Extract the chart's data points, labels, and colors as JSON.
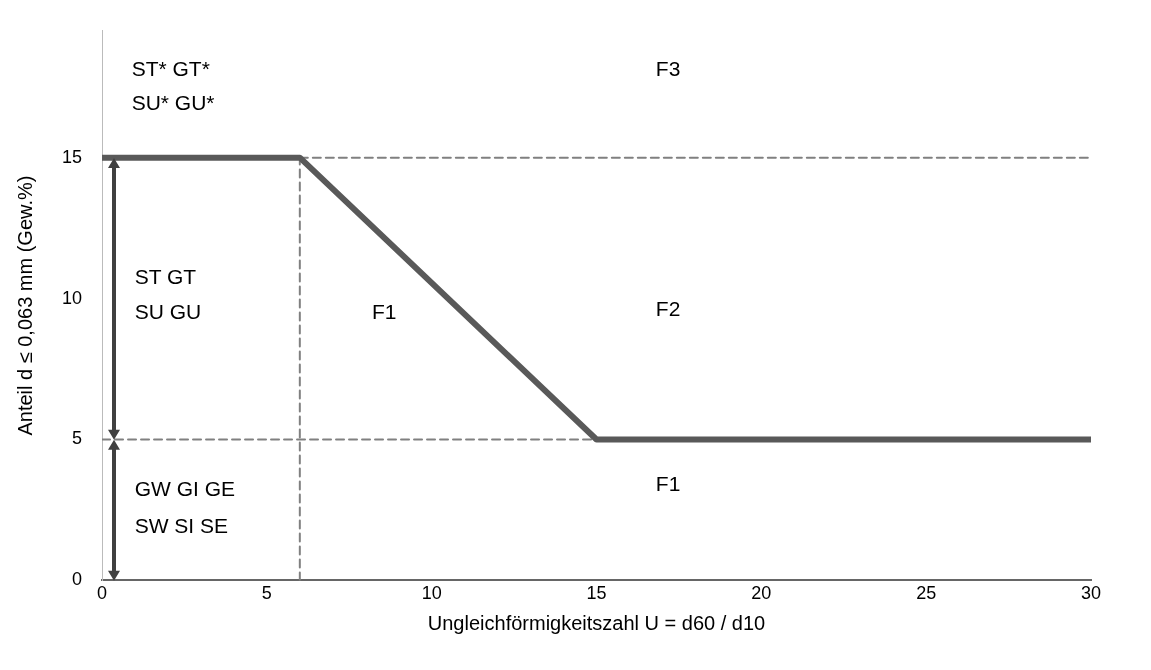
{
  "chart_data": {
    "type": "line",
    "xlabel": "Ungleichförmigkeitszahl U = d60 / d10",
    "ylabel": "Anteil d ≤ 0,063 mm (Gew.%)",
    "xlim": [
      0,
      30
    ],
    "ylim": [
      0,
      19.5
    ],
    "xticks": [
      0,
      5,
      10,
      15,
      20,
      25,
      30
    ],
    "yticks": [
      0,
      5,
      10,
      15
    ],
    "grid": false,
    "legend": false,
    "marker": "none",
    "series": [
      {
        "x": [
          0,
          6,
          15,
          30
        ],
        "values": [
          15,
          15,
          5,
          5
        ],
        "color": "#595959",
        "line_style": "solid"
      },
      {
        "x": [
          6,
          30
        ],
        "values": [
          15,
          15
        ],
        "color": "#808080",
        "line_style": "dashed"
      },
      {
        "x": [
          0,
          15
        ],
        "values": [
          5,
          5
        ],
        "color": "#808080",
        "line_style": "dashed"
      },
      {
        "x": [
          6,
          6
        ],
        "values": [
          0,
          15
        ],
        "color": "#808080",
        "line_style": "dashed"
      }
    ],
    "annotations": [
      "ST* GT*",
      "SU* GU*",
      "ST GT",
      "SU GU",
      "GW GI GE",
      "SW SI SE",
      "F1",
      "F3",
      "F2",
      "F1"
    ]
  }
}
